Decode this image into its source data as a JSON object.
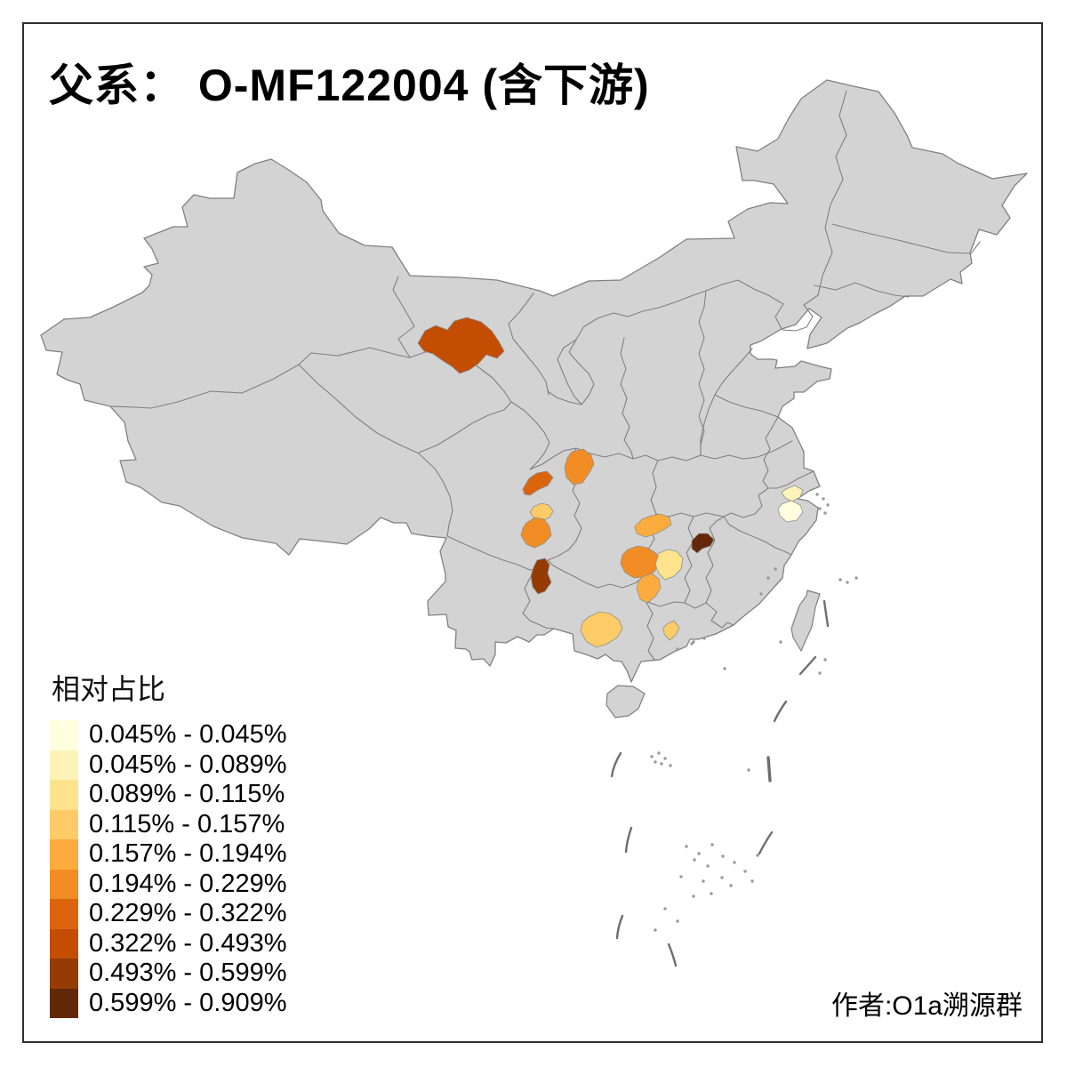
{
  "title": "父系： O-MF122004 (含下游)",
  "attribution": "作者:O1a溯源群",
  "legend": {
    "title": "相对占比",
    "bins": [
      {
        "label": "0.045% - 0.045%",
        "color": "#FFFEDE"
      },
      {
        "label": "0.045% - 0.089%",
        "color": "#FCF3B8"
      },
      {
        "label": "0.089% - 0.115%",
        "color": "#FDE38C"
      },
      {
        "label": "0.115% - 0.157%",
        "color": "#FDCB67"
      },
      {
        "label": "0.157% - 0.194%",
        "color": "#FCAC3E"
      },
      {
        "label": "0.194% - 0.229%",
        "color": "#F28C24"
      },
      {
        "label": "0.229% - 0.322%",
        "color": "#DC640D"
      },
      {
        "label": "0.322% - 0.493%",
        "color": "#C24D03"
      },
      {
        "label": "0.493% - 0.599%",
        "color": "#953B04"
      },
      {
        "label": "0.599% - 0.909%",
        "color": "#632808"
      }
    ]
  },
  "map": {
    "background": "#FFFFFF",
    "base_fill": "#D3D3D3",
    "border_color": "#808080",
    "frame_color": "#2E2E2E",
    "regions": [
      {
        "id": "region-01",
        "area_hint": "northwest (Hexi corridor)",
        "bin": 8,
        "range": "0.322% - 0.493%",
        "color": "#C24D03"
      },
      {
        "id": "region-02",
        "area_hint": "north-central (NE Sichuan)",
        "bin": 6,
        "range": "0.194% - 0.229%",
        "color": "#F28C24"
      },
      {
        "id": "region-03",
        "area_hint": "central (Chengdu strip)",
        "bin": 7,
        "range": "0.229% - 0.322%",
        "color": "#DC640D"
      },
      {
        "id": "region-04",
        "area_hint": "central (south Sichuan small)",
        "bin": 4,
        "range": "0.115% - 0.157%",
        "color": "#FDCB67"
      },
      {
        "id": "region-05",
        "area_hint": "central (Yibin area blob)",
        "bin": 6,
        "range": "0.194% - 0.229%",
        "color": "#F28C24"
      },
      {
        "id": "region-06",
        "area_hint": "southwest (east Yunnan dark)",
        "bin": 9,
        "range": "0.493% - 0.599%",
        "color": "#953B04"
      },
      {
        "id": "region-07",
        "area_hint": "south-central (north Hunan)",
        "bin": 5,
        "range": "0.157% - 0.194%",
        "color": "#FCAC3E"
      },
      {
        "id": "region-08",
        "area_hint": "south-central (central Hunan)",
        "bin": 6,
        "range": "0.194% - 0.229%",
        "color": "#F28C24"
      },
      {
        "id": "region-09",
        "area_hint": "south-central (east Hunan pale)",
        "bin": 3,
        "range": "0.089% - 0.115%",
        "color": "#FDE38C"
      },
      {
        "id": "region-10",
        "area_hint": "south-central (south Hunan)",
        "bin": 5,
        "range": "0.157% - 0.194%",
        "color": "#FCAC3E"
      },
      {
        "id": "region-11",
        "area_hint": "southeast (west Jiangxi dark)",
        "bin": 10,
        "range": "0.599% - 0.909%",
        "color": "#632808"
      },
      {
        "id": "region-12",
        "area_hint": "south (central Guangxi)",
        "bin": 4,
        "range": "0.115% - 0.157%",
        "color": "#FDCB67"
      },
      {
        "id": "region-13",
        "area_hint": "south (Pearl delta small)",
        "bin": 4,
        "range": "0.115% - 0.157%",
        "color": "#FDCB67"
      },
      {
        "id": "region-14",
        "area_hint": "east (north Zhejiang)",
        "bin": 2,
        "range": "0.045% - 0.089%",
        "color": "#FCF3B8"
      },
      {
        "id": "region-15",
        "area_hint": "east (central Zhejiang)",
        "bin": 1,
        "range": "0.045% - 0.045%",
        "color": "#FFFEDE"
      }
    ]
  }
}
